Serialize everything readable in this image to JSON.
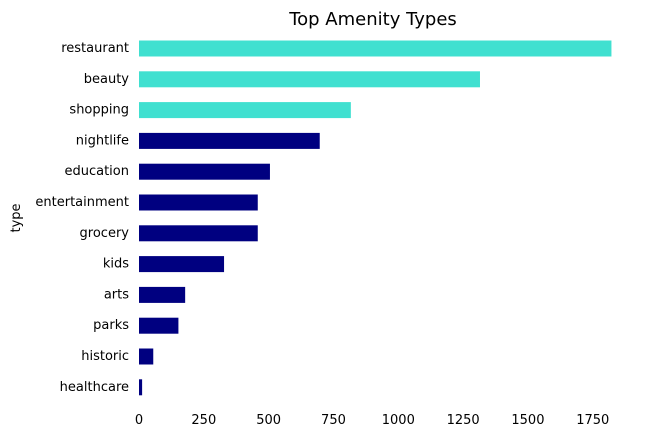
{
  "chart_data": {
    "type": "bar",
    "orientation": "horizontal",
    "title": "Top Amenity Types",
    "xlabel": "",
    "ylabel": "type",
    "categories": [
      "restaurant",
      "beauty",
      "shopping",
      "nightlife",
      "education",
      "entertainment",
      "grocery",
      "kids",
      "arts",
      "parks",
      "historic",
      "healthcare"
    ],
    "values": [
      1822,
      1315,
      817,
      697,
      505,
      458,
      458,
      328,
      178,
      152,
      55,
      12
    ],
    "xlim": [
      0,
      1850
    ],
    "xticks": [
      0,
      250,
      500,
      750,
      1000,
      1250,
      1500,
      1750
    ],
    "xtick_labels": [
      "0",
      "250",
      "500",
      "750",
      "1000",
      "1250",
      "1500",
      "1750"
    ],
    "highlight_count": 3,
    "grid": false,
    "colors": {
      "highlight": "#40E0D0",
      "default": "#000080"
    }
  }
}
